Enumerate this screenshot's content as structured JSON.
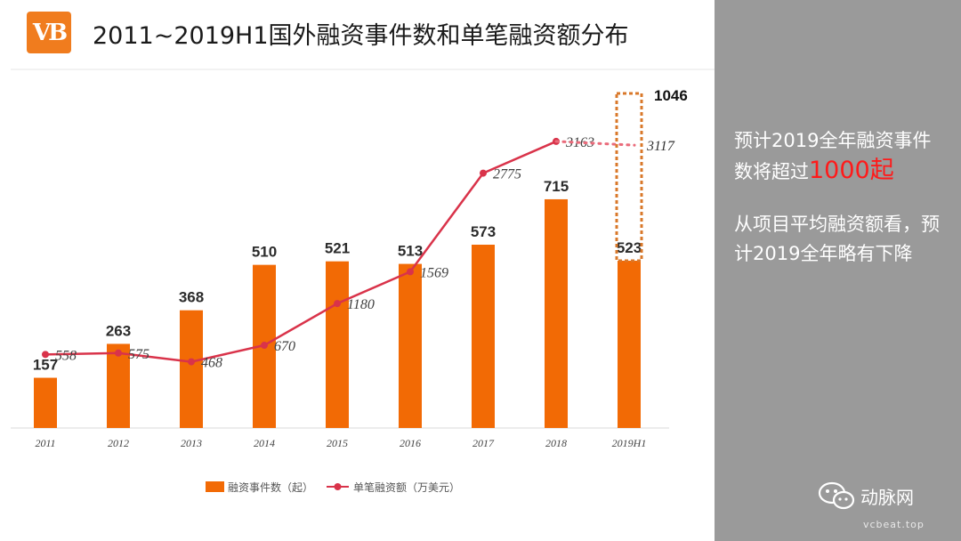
{
  "logo": {
    "text": "VB"
  },
  "title": "2011~2019H1国外融资事件数和单笔融资额分布",
  "colors": {
    "bar": "#f26a05",
    "line": "#d9334a",
    "side_bg": "#9a9a9a",
    "highlight": "#ff1a1a"
  },
  "chart_data": {
    "type": "bar",
    "title": "2011~2019H1国外融资事件数和单笔融资额分布",
    "categories": [
      "2011",
      "2012",
      "2013",
      "2014",
      "2015",
      "2016",
      "2017",
      "2018",
      "2019H1"
    ],
    "series": [
      {
        "name": "融资事件数（起）",
        "type": "bar",
        "values": [
          157,
          263,
          368,
          510,
          521,
          513,
          573,
          715,
          523
        ]
      },
      {
        "name": "单笔融资额（万美元）",
        "type": "line",
        "values": [
          558,
          575,
          468,
          670,
          1180,
          1569,
          2775,
          3163,
          null
        ]
      }
    ],
    "projection": {
      "events_full_year": 1046,
      "avg_amount_full_year": 3117
    },
    "legend_position": "bottom",
    "grid": false
  },
  "sidebar": {
    "note1_prefix": "预计2019全年融资事件数将超过",
    "note1_highlight": "1000起",
    "note2": "从项目平均融资额看，预计2019全年略有下降"
  },
  "watermark": {
    "icon": "wechat-icon",
    "name": "动脉网",
    "sub": "vcbeat.top"
  }
}
